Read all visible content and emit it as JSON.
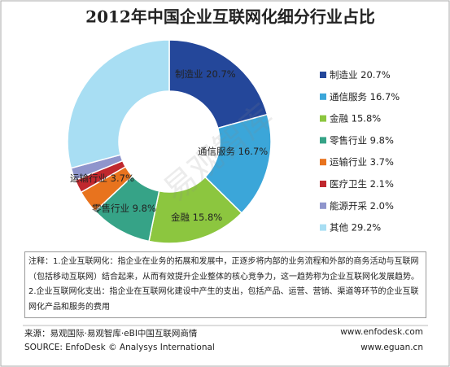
{
  "chart_data": {
    "type": "donut",
    "title": "2012年中国企业互联网化细分行业占比",
    "categories": [
      "制造业",
      "通信服务",
      "金融",
      "零售行业",
      "运输行业",
      "医疗卫生",
      "能源开采",
      "其他"
    ],
    "values": [
      20.7,
      16.7,
      15.8,
      9.8,
      3.7,
      2.1,
      2.0,
      29.2
    ],
    "value_labels": [
      "20.7%",
      "16.7%",
      "15.8%",
      "9.8%",
      "3.7%",
      "2.1%",
      "2.0%",
      "29.2%"
    ],
    "colors": [
      "#24479a",
      "#3ba6d9",
      "#8cc63f",
      "#36a387",
      "#e8731e",
      "#c0282e",
      "#8f95cc",
      "#a8def3"
    ],
    "legend": "right",
    "watermark": "易观智库"
  },
  "notes": "注释：1.企业互联网化：指企业在业务的拓展和发展中，正逐步将内部的业务流程和外部的商务活动与互联网（包括移动互联网）结合起来，从而有效提升企业整体的核心竞争力，这一趋势称为企业互联网化发展趋势。2.企业互联网化支出：指企业在互联网化建设中产生的支出，包括产品、运营、营销、渠道等环节的企业互联网化产品和服务的费用",
  "source": {
    "cn": "来源：易观国际·易观智库·eBI中国互联网商情",
    "site1": "www.enfodesk.com",
    "en": "SOURCE: EnfoDesk © Analysys International",
    "site2": "www.eguan.cn"
  }
}
